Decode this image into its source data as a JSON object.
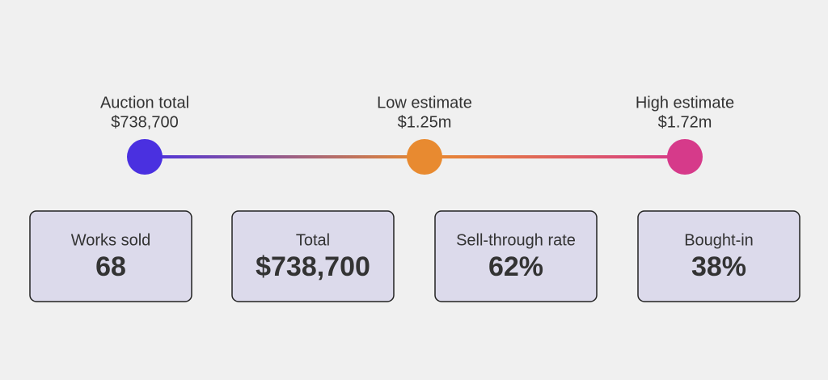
{
  "timeline": {
    "points": [
      {
        "label": "Auction total",
        "value": "$738,700"
      },
      {
        "label": "Low estimate",
        "value": "$1.25m"
      },
      {
        "label": "High estimate",
        "value": "$1.72m"
      }
    ]
  },
  "cards": [
    {
      "label": "Works sold",
      "value": "68"
    },
    {
      "label": "Total",
      "value": "$738,700"
    },
    {
      "label": "Sell-through rate",
      "value": "62%"
    },
    {
      "label": "Bought-in",
      "value": "38%"
    }
  ]
}
